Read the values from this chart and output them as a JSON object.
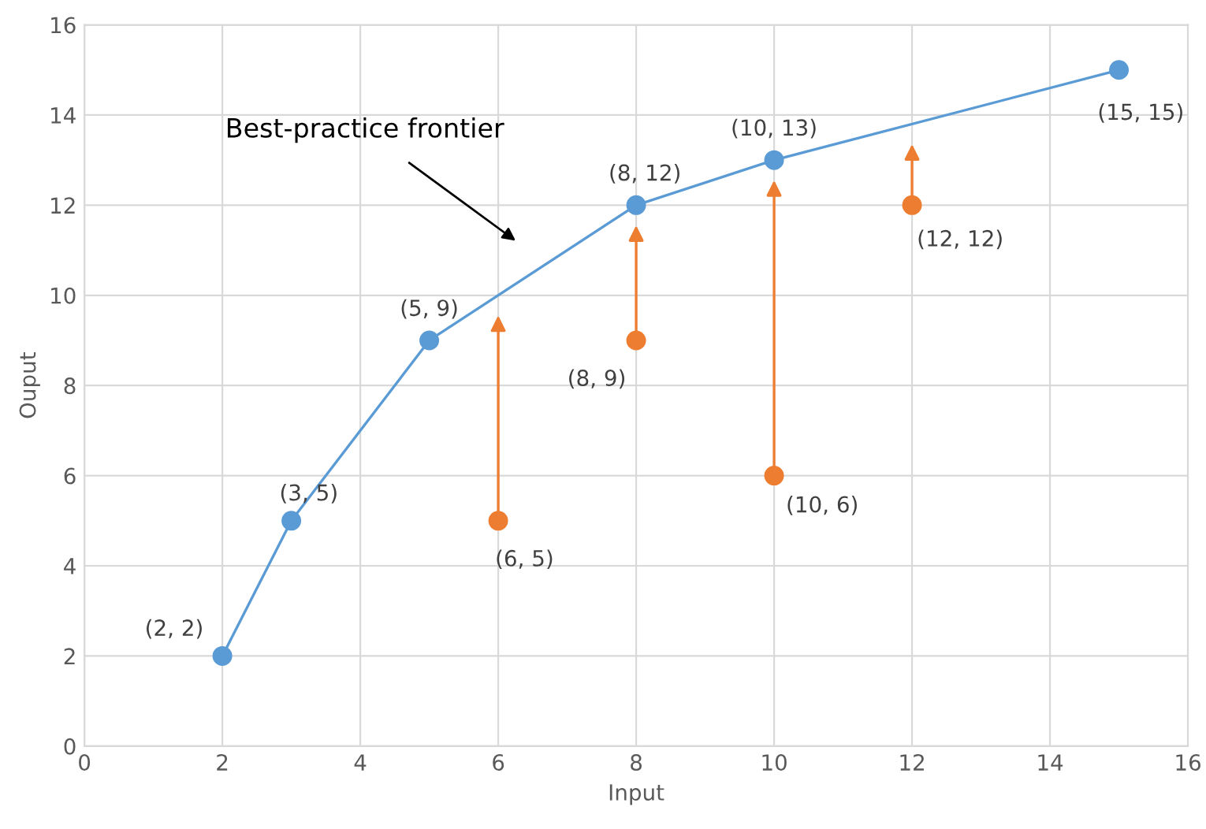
{
  "chart_data": {
    "type": "line",
    "xlabel": "Input",
    "ylabel": "Ouput",
    "xlim": [
      0,
      16
    ],
    "ylim": [
      0,
      16
    ],
    "xticks": [
      0,
      2,
      4,
      6,
      8,
      10,
      12,
      14,
      16
    ],
    "yticks": [
      0,
      2,
      4,
      6,
      8,
      10,
      12,
      14,
      16
    ],
    "grid": true,
    "series": [
      {
        "color": "#5b9bd5",
        "marker": "circle",
        "x": [
          2,
          3,
          5,
          8,
          10,
          15
        ],
        "values": [
          2,
          5,
          9,
          12,
          13,
          15
        ],
        "value_labels": [
          "(2, 2)",
          "(3, 5)",
          "(5, 9)",
          "(8, 12)",
          "(10, 13)",
          "(15, 15)"
        ]
      },
      {
        "type": "scatter",
        "color": "#ed7d31",
        "marker": "circle",
        "x": [
          6,
          8,
          10,
          12
        ],
        "values": [
          5,
          9,
          6,
          12
        ],
        "value_labels": [
          "(6, 5)",
          "(8, 9)",
          "(10, 6)",
          "(12, 12)"
        ]
      }
    ],
    "annotations": [
      "Best-practice frontier"
    ]
  }
}
